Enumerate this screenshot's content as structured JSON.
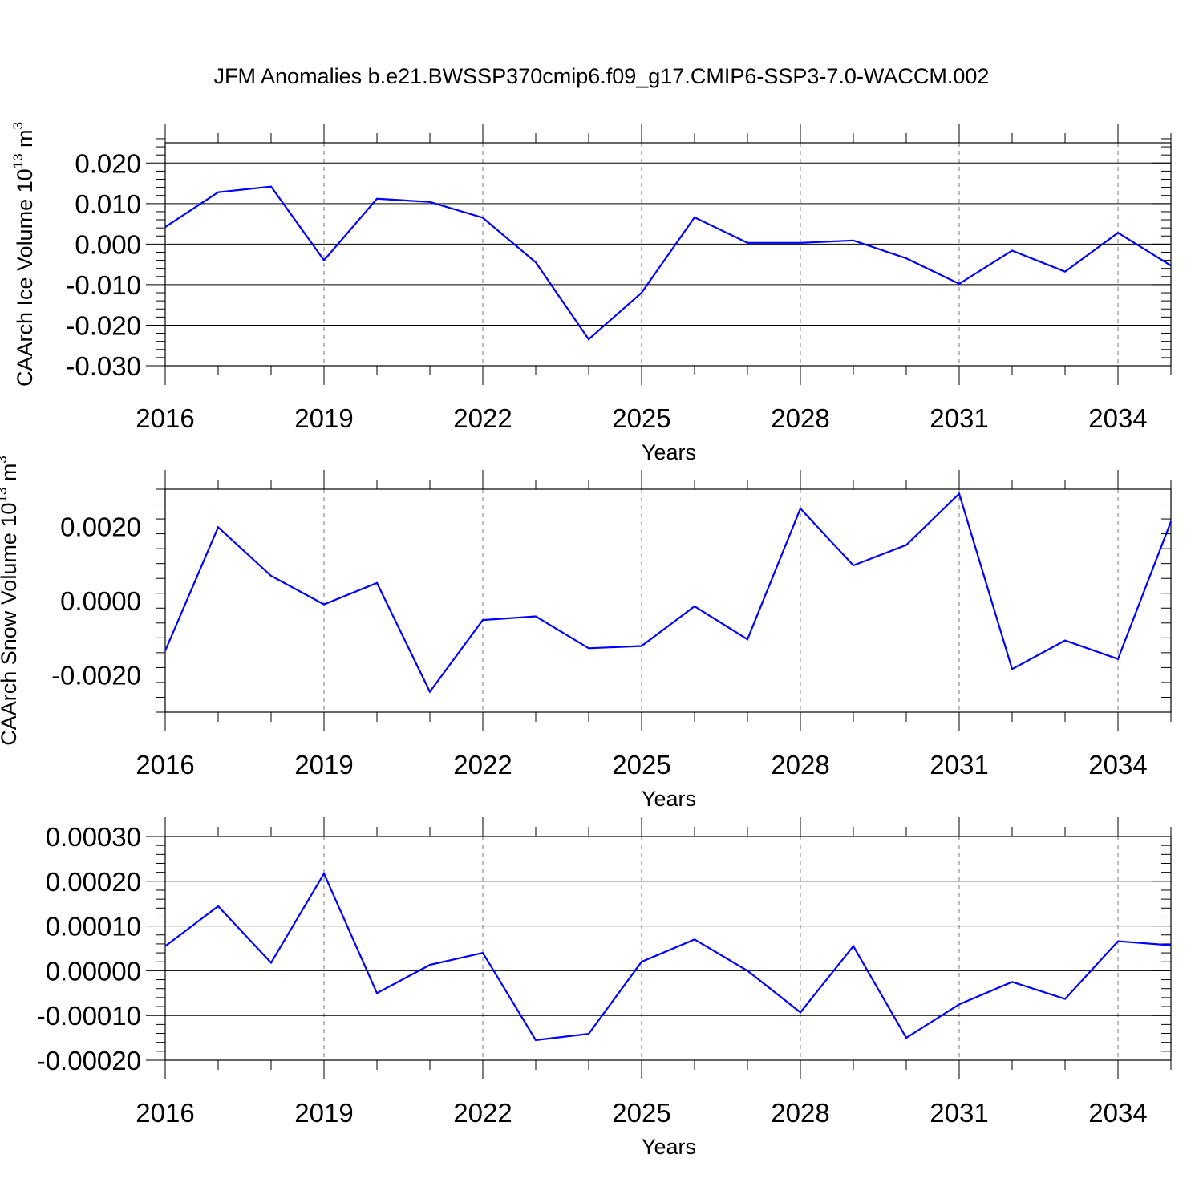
{
  "title": "JFM Anomalies b.e21.BWSSP370cmip6.f09_g17.CMIP6-SSP3-7.0-WACCM.002",
  "chart_data": [
    {
      "type": "line",
      "xlabel": "Years",
      "ylabel_main": "CAArch Ice Volume 10",
      "ylabel_sup": "13",
      "ylabel_unit": " m",
      "ylabel_unit_sup": "3",
      "xlim": [
        2016,
        2035
      ],
      "ylim": [
        -0.03,
        0.025
      ],
      "xticks": [
        2016,
        2019,
        2022,
        2025,
        2028,
        2031,
        2034
      ],
      "xtick_labels": [
        "2016",
        "2019",
        "2022",
        "2025",
        "2028",
        "2031",
        "2034"
      ],
      "yticks": [
        0.02,
        0.01,
        0.0,
        -0.01,
        -0.02,
        -0.03
      ],
      "ytick_labels": [
        "0.020",
        "0.010",
        "0.000",
        "-0.010",
        "-0.020",
        "-0.030"
      ],
      "grid": "vertical dashed at major x ticks",
      "line_color": "#0000ff",
      "x": [
        2016,
        2017,
        2018,
        2019,
        2020,
        2021,
        2022,
        2023,
        2024,
        2025,
        2026,
        2027,
        2028,
        2029,
        2030,
        2031,
        2032,
        2033,
        2034,
        2035
      ],
      "values": [
        0.0042,
        0.0128,
        0.0142,
        -0.004,
        0.0112,
        0.0104,
        0.0065,
        -0.0045,
        -0.0235,
        -0.012,
        0.0066,
        0.0003,
        0.0003,
        0.0009,
        -0.0035,
        -0.0098,
        -0.0016,
        -0.0068,
        0.0028,
        -0.0053
      ]
    },
    {
      "type": "line",
      "xlabel": "Years",
      "ylabel_main": "CAArch Snow Volume 10",
      "ylabel_sup": "13",
      "ylabel_unit": " m",
      "ylabel_unit_sup": "3",
      "xlim": [
        2016,
        2035
      ],
      "ylim": [
        -0.003,
        0.003
      ],
      "xticks": [
        2016,
        2019,
        2022,
        2025,
        2028,
        2031,
        2034
      ],
      "xtick_labels": [
        "2016",
        "2019",
        "2022",
        "2025",
        "2028",
        "2031",
        "2034"
      ],
      "yticks": [
        0.002,
        0.0,
        -0.002
      ],
      "ytick_labels": [
        "0.0020",
        "0.0000",
        "-0.0020"
      ],
      "grid": "vertical dashed at major x ticks",
      "line_color": "#0000ff",
      "x": [
        2016,
        2017,
        2018,
        2019,
        2020,
        2021,
        2022,
        2023,
        2024,
        2025,
        2026,
        2027,
        2028,
        2029,
        2030,
        2031,
        2032,
        2033,
        2034,
        2035
      ],
      "values": [
        -0.00135,
        0.00198,
        0.00067,
        -0.0001,
        0.00048,
        -0.00245,
        -0.00052,
        -0.00042,
        -0.00128,
        -0.00122,
        -0.00015,
        -0.00104,
        0.00248,
        0.00095,
        0.0015,
        0.00288,
        -0.00184,
        -0.00107,
        -0.00157,
        0.00213
      ]
    },
    {
      "type": "line",
      "xlabel": "Years",
      "ylabel_main": "",
      "ylabel_sup": "",
      "ylabel_unit": "",
      "ylabel_unit_sup": "",
      "xlim": [
        2016,
        2035
      ],
      "ylim": [
        -0.0002,
        0.0003
      ],
      "xticks": [
        2016,
        2019,
        2022,
        2025,
        2028,
        2031,
        2034
      ],
      "xtick_labels": [
        "2016",
        "2019",
        "2022",
        "2025",
        "2028",
        "2031",
        "2034"
      ],
      "yticks": [
        0.0003,
        0.0002,
        0.0001,
        0.0,
        -0.0001,
        -0.0002
      ],
      "ytick_labels": [
        "0.00030",
        "0.00020",
        "0.00010",
        "0.00000",
        "-0.00010",
        "-0.00020"
      ],
      "grid": "vertical dashed at major x ticks",
      "line_color": "#0000ff",
      "x": [
        2016,
        2017,
        2018,
        2019,
        2020,
        2021,
        2022,
        2023,
        2024,
        2025,
        2026,
        2027,
        2028,
        2029,
        2030,
        2031,
        2032,
        2033,
        2034,
        2035
      ],
      "values": [
        5.5e-05,
        0.000144,
        1.8e-05,
        0.000217,
        -5e-05,
        1.3e-05,
        4e-05,
        -0.000155,
        -0.000141,
        2e-05,
        7e-05,
        0.0,
        -9.3e-05,
        5.5e-05,
        -0.00015,
        -7.5e-05,
        -2.5e-05,
        -6.3e-05,
        6.6e-05,
        5.7e-05
      ]
    }
  ]
}
